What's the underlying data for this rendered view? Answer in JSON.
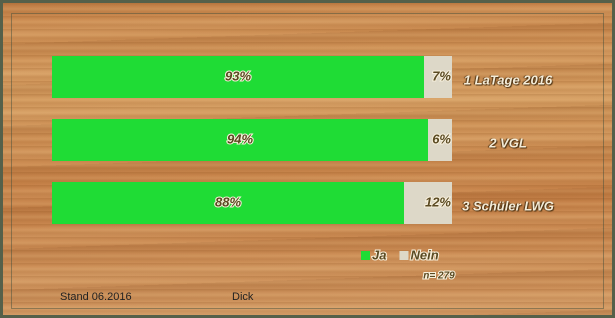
{
  "chart_data": {
    "type": "bar",
    "horizontal": true,
    "stacked": true,
    "categories": [
      "1 LaTage 2016",
      "2 VGL",
      "3 Schüler LWG"
    ],
    "series": [
      {
        "name": "Ja",
        "color": "#1fdc35",
        "values": [
          93,
          94,
          88
        ],
        "value_labels": [
          "93%",
          "94%",
          "88%"
        ]
      },
      {
        "name": "Nein",
        "color": "#ddd8c8",
        "values": [
          7,
          6,
          12
        ],
        "value_labels": [
          "7%",
          "6%",
          "12%"
        ]
      }
    ],
    "xlim": [
      0,
      100
    ],
    "annotation": "n= 279",
    "footer_left": "Stand 06.2016",
    "footer_right": "Dick"
  }
}
